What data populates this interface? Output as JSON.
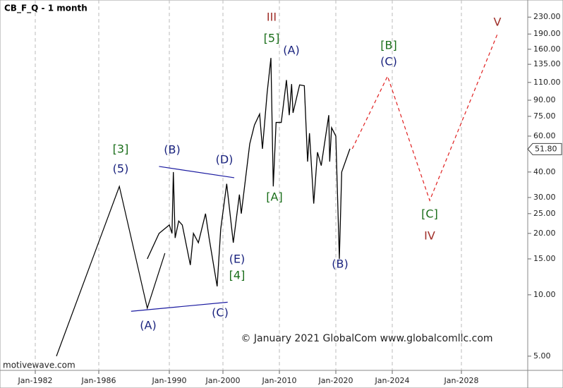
{
  "chart_data": {
    "type": "line",
    "title": "CB_F_Q - 1 month",
    "watermark": "motivewave.com",
    "copyright": "© January 2021 GlobalCom www.globalcomllc.com",
    "log_scale": true,
    "grid": true,
    "ylim": [
      4.26,
      279
    ],
    "yticks": [
      {
        "value": 5,
        "label": "5.00"
      },
      {
        "value": 10,
        "label": "10.00"
      },
      {
        "value": 15,
        "label": "15.00"
      },
      {
        "value": 20,
        "label": "20.00"
      },
      {
        "value": 25,
        "label": "25.00"
      },
      {
        "value": 30,
        "label": "30.00"
      },
      {
        "value": 40,
        "label": "40.00"
      },
      {
        "value": 60,
        "label": "60.00"
      },
      {
        "value": 75,
        "label": "75.00"
      },
      {
        "value": 90,
        "label": "90.00"
      },
      {
        "value": 110,
        "label": "110.00"
      },
      {
        "value": 135,
        "label": "135.00"
      },
      {
        "value": 160,
        "label": "160.00"
      },
      {
        "value": 190,
        "label": "190.00"
      },
      {
        "value": 230,
        "label": "230.00"
      }
    ],
    "xticks": [
      {
        "value": 1982,
        "label": "Jan-1982"
      },
      {
        "value": 1986,
        "label": "Jan-1986"
      },
      {
        "value": 1990,
        "label": "Jan-1990"
      },
      {
        "value": 2000,
        "label": "Jan-2000"
      },
      {
        "value": 2010,
        "label": "Jan-2010"
      },
      {
        "value": 2020,
        "label": "Jan-2020"
      },
      {
        "value": 2024,
        "label": "Jan-2024"
      },
      {
        "value": 2028,
        "label": "Jan-2028"
      }
    ],
    "last_price": {
      "value": 51.8,
      "label": "51.80"
    },
    "x": [
      "1988-10",
      "1989-06",
      "1990-01",
      "1990-07",
      "1990-10",
      "1991-02",
      "1991-10",
      "1992-06",
      "1993-12",
      "1994-07",
      "1995-06",
      "1996-10",
      "1997-06",
      "1998-12",
      "1999-08",
      "2000-09",
      "2001-11",
      "2002-12",
      "2003-04",
      "2004-10",
      "2005-08",
      "2006-07",
      "2007-01",
      "2007-11",
      "2008-07",
      "2008-12",
      "2009-06",
      "2010-05",
      "2011-04",
      "2011-10",
      "2012-03",
      "2012-06",
      "2013-08",
      "2014-06",
      "2015-01",
      "2015-05",
      "2016-02",
      "2016-10",
      "2017-06",
      "2018-10",
      "2018-12",
      "2019-04",
      "2020-01",
      "2020-04",
      "2020-06",
      "2021-01"
    ],
    "series": [
      {
        "color": "#000000",
        "values": [
          15,
          20,
          22,
          20,
          40,
          19,
          23,
          22,
          14,
          20,
          18,
          25,
          19,
          11,
          21,
          35,
          18,
          31,
          25,
          55,
          68,
          77,
          52,
          98,
          145,
          34,
          70,
          70,
          113,
          76,
          108,
          78,
          107,
          106,
          45,
          62,
          28,
          50,
          43,
          76,
          45,
          66,
          60,
          15,
          40,
          52
        ]
      }
    ],
    "wave_lines": [
      {
        "color": "#000000",
        "dashed": false,
        "x": [
          "1983-05",
          "1987-03",
          "1988-10",
          "1989-10"
        ],
        "y": [
          5,
          34,
          8.6,
          16
        ]
      },
      {
        "color": "#1a1aa0",
        "dashed": false,
        "x": [
          "1989-06",
          "2002-01"
        ],
        "y": [
          42.6,
          37.5
        ]
      },
      {
        "color": "#1a1aa0",
        "dashed": false,
        "x": [
          "1987-11",
          "2000-11"
        ],
        "y": [
          8.3,
          9.2
        ]
      },
      {
        "color": "#e02020",
        "dashed": true,
        "x": [
          "2021-03",
          "2023-09",
          "2026-03",
          "2030-02"
        ],
        "y": [
          52,
          118,
          29,
          190
        ]
      }
    ],
    "wave_labels": [
      {
        "text": "III",
        "color": "#a0302a"
      },
      {
        "text": "[5]",
        "color": "#1a6e1a"
      },
      {
        "text": "(A)",
        "color": "#1a237e"
      },
      {
        "text": "[3]",
        "color": "#1a6e1a"
      },
      {
        "text": "(5)",
        "color": "#1a237e"
      },
      {
        "text": "(B)",
        "color": "#1a237e"
      },
      {
        "text": "(D)",
        "color": "#1a237e"
      },
      {
        "text": "[A]",
        "color": "#1a6e1a"
      },
      {
        "text": "(E)",
        "color": "#1a237e"
      },
      {
        "text": "[4]",
        "color": "#1a6e1a"
      },
      {
        "text": "(C)",
        "color": "#1a237e"
      },
      {
        "text": "(A)",
        "color": "#1a237e"
      },
      {
        "text": "(B)",
        "color": "#1a237e"
      },
      {
        "text": "[B]",
        "color": "#1a6e1a"
      },
      {
        "text": "(C)",
        "color": "#1a237e"
      },
      {
        "text": "[C]",
        "color": "#1a6e1a"
      },
      {
        "text": "IV",
        "color": "#a0302a"
      },
      {
        "text": "V",
        "color": "#a0302a"
      }
    ]
  }
}
